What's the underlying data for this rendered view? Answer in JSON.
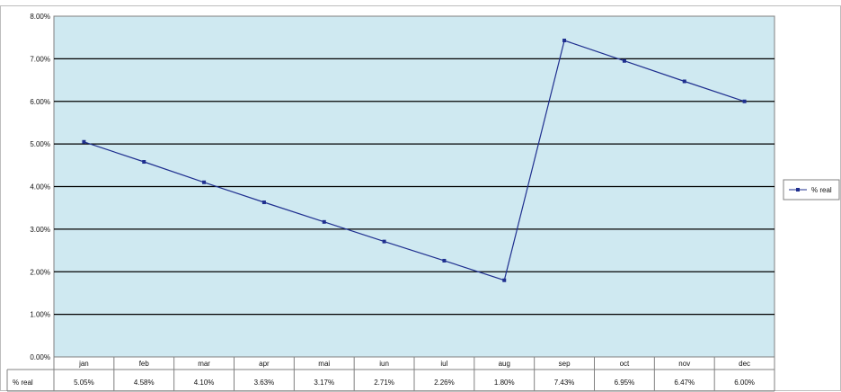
{
  "chart_data": {
    "type": "line",
    "categories": [
      "jan",
      "feb",
      "mar",
      "apr",
      "mai",
      "iun",
      "iul",
      "aug",
      "sep",
      "oct",
      "nov",
      "dec"
    ],
    "series": [
      {
        "name": "% real",
        "values": [
          5.05,
          4.58,
          4.1,
          3.63,
          3.17,
          2.71,
          2.26,
          1.8,
          7.43,
          6.95,
          6.47,
          6.0
        ],
        "labels": [
          "5.05%",
          "4.58%",
          "4.10%",
          "3.63%",
          "3.17%",
          "2.71%",
          "2.26%",
          "1.80%",
          "7.43%",
          "6.95%",
          "6.47%",
          "6.00%"
        ]
      }
    ],
    "y_ticks": [
      "0.00%",
      "1.00%",
      "2.00%",
      "3.00%",
      "4.00%",
      "5.00%",
      "6.00%",
      "7.00%",
      "8.00%"
    ],
    "ylim": [
      0,
      8
    ],
    "grid": true,
    "legend": "right",
    "data_table": true,
    "colors": {
      "plot_bg": "#cfe9f1",
      "line": "#1f2f8f",
      "grid": "#000000"
    }
  }
}
